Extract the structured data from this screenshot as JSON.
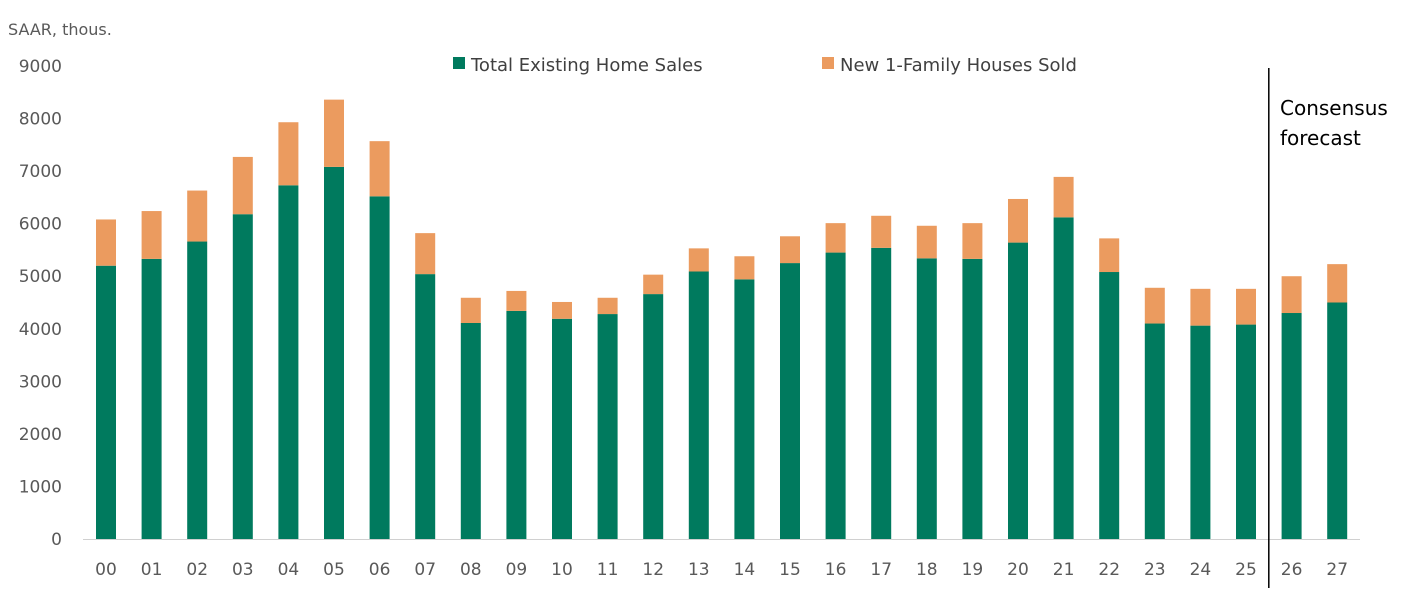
{
  "chart_data": {
    "type": "bar",
    "stacked": true,
    "unit_label": "SAAR, thous.",
    "categories": [
      "00",
      "01",
      "02",
      "03",
      "04",
      "05",
      "06",
      "07",
      "08",
      "09",
      "10",
      "11",
      "12",
      "13",
      "14",
      "15",
      "16",
      "17",
      "18",
      "19",
      "20",
      "21",
      "22",
      "23",
      "24",
      "25",
      "26",
      "27"
    ],
    "series": [
      {
        "name": "Total Existing Home Sales",
        "color": "#007A5E",
        "values": [
          5200,
          5330,
          5660,
          6180,
          6730,
          7080,
          6520,
          5040,
          4110,
          4340,
          4190,
          4280,
          4660,
          5090,
          4940,
          5250,
          5450,
          5540,
          5340,
          5330,
          5640,
          6120,
          5080,
          4100,
          4060,
          4080,
          4300,
          4500
        ]
      },
      {
        "name": "New 1-Family Houses Sold",
        "color": "#EB9B5F",
        "values": [
          880,
          910,
          970,
          1090,
          1200,
          1280,
          1050,
          780,
          480,
          380,
          320,
          310,
          370,
          440,
          440,
          510,
          560,
          610,
          620,
          680,
          830,
          770,
          640,
          680,
          700,
          680,
          700,
          730
        ]
      }
    ],
    "ylim": [
      0,
      9000
    ],
    "yticks": [
      "0",
      "1000",
      "2000",
      "3000",
      "4000",
      "5000",
      "6000",
      "7000",
      "8000",
      "9000"
    ],
    "grid": false,
    "legend_position": "top-center",
    "annotation": {
      "text_line1": "Consensus",
      "text_line2": "forecast",
      "divider_after_category": "25"
    }
  }
}
